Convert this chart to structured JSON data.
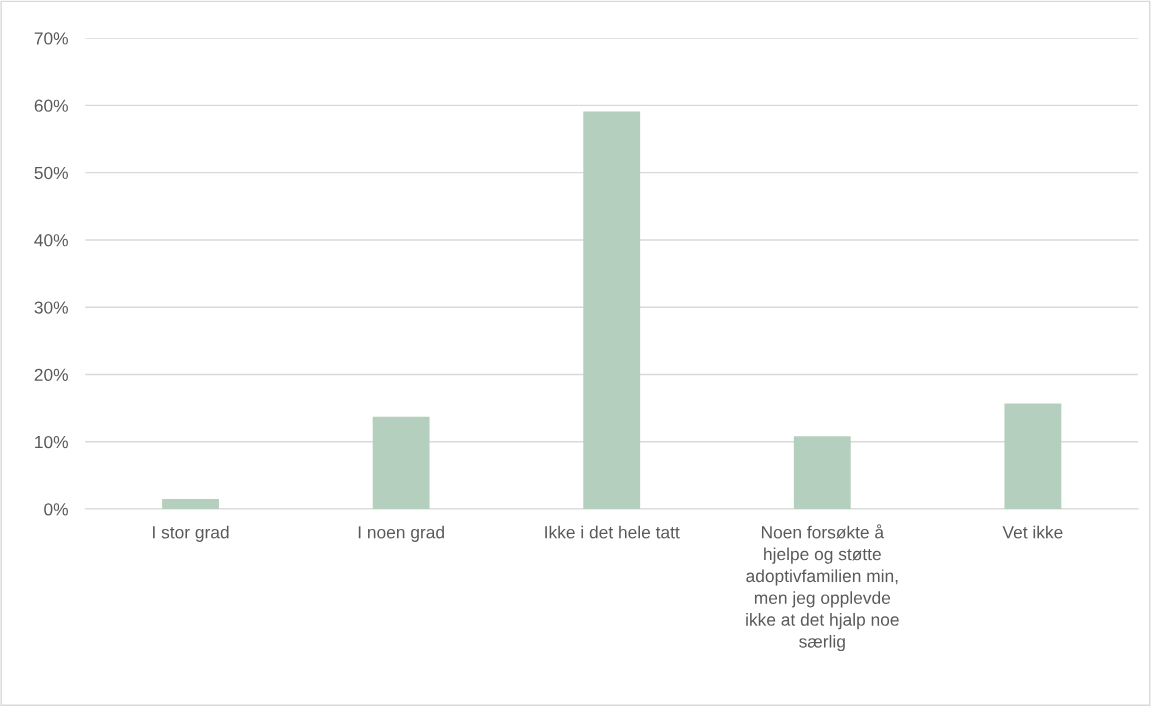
{
  "chart_data": {
    "type": "bar",
    "categories": [
      "I stor grad",
      "I noen grad",
      "Ikke i det hele tatt",
      "Noen forsøkte å\nhjelpe og støtte\nadoptivfamilien min,\nmen jeg opplevde\nikke at det hjalp noe\nsærlig",
      "Vet ikke"
    ],
    "values": [
      1.5,
      13.7,
      59.1,
      10.8,
      15.7
    ],
    "color": "#b5cfbe",
    "ylim": [
      0,
      70
    ],
    "yticks": [
      {
        "value": 0,
        "label": "0%"
      },
      {
        "value": 10,
        "label": "10%"
      },
      {
        "value": 20,
        "label": "20%"
      },
      {
        "value": 30,
        "label": "30%"
      },
      {
        "value": 40,
        "label": "40%"
      },
      {
        "value": 50,
        "label": "50%"
      },
      {
        "value": 60,
        "label": "60%"
      },
      {
        "value": 70,
        "label": "70%"
      }
    ],
    "grid": "y"
  }
}
